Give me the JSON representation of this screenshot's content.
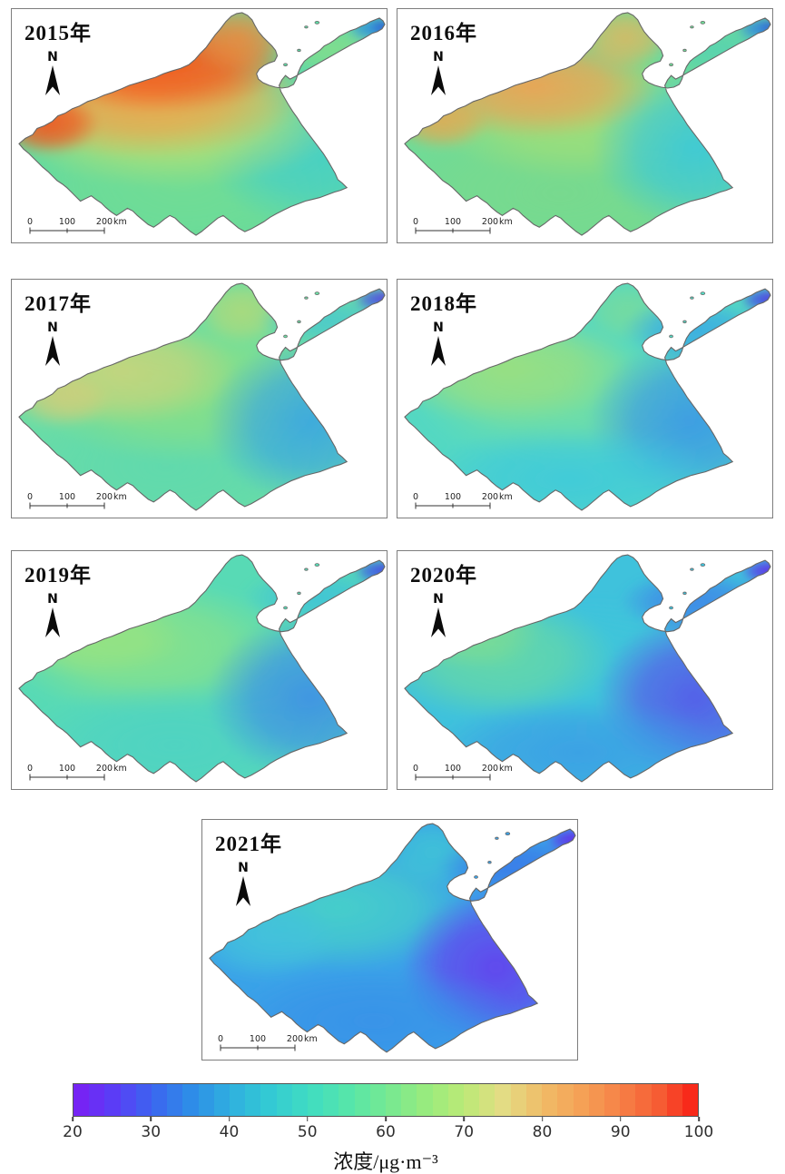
{
  "figure": {
    "panel_chrome": {
      "north_label": "N",
      "scale_ticks": [
        "0",
        "100",
        "200"
      ],
      "scale_unit": "km"
    },
    "panels": [
      {
        "year_label": "2015年",
        "base_color": "#5ed9a4",
        "field": [
          [
            190,
            195,
            220,
            110,
            "#74dd92",
            0.85
          ],
          [
            330,
            150,
            120,
            95,
            "#46cfc6",
            0.95
          ],
          [
            355,
            45,
            75,
            30,
            "#8ade88",
            0.75
          ],
          [
            175,
            120,
            195,
            80,
            "#bbe070",
            0.9
          ],
          [
            145,
            95,
            180,
            72,
            "#f0a04a",
            0.92
          ],
          [
            165,
            60,
            145,
            56,
            "#f2571c",
            0.95
          ],
          [
            40,
            128,
            58,
            36,
            "#f1531e",
            0.9
          ],
          [
            252,
            32,
            56,
            40,
            "#f08a3c",
            0.85
          ],
          [
            400,
            22,
            30,
            16,
            "#2f8fe0",
            0.95
          ],
          [
            411,
            20,
            14,
            10,
            "#2b55d6",
            0.95
          ]
        ]
      },
      {
        "year_label": "2016年",
        "base_color": "#6fdb97",
        "field": [
          [
            180,
            205,
            200,
            90,
            "#7ad98c",
            0.8
          ],
          [
            200,
            120,
            165,
            72,
            "#a5df75",
            0.85
          ],
          [
            330,
            155,
            115,
            90,
            "#3ec9d6",
            0.95
          ],
          [
            352,
            45,
            78,
            30,
            "#55d2b2",
            0.85
          ],
          [
            150,
            85,
            140,
            60,
            "#efa153",
            0.92
          ],
          [
            48,
            125,
            55,
            32,
            "#eda64e",
            0.85
          ],
          [
            252,
            32,
            52,
            36,
            "#e8b45c",
            0.8
          ],
          [
            402,
            22,
            28,
            15,
            "#2f83e2",
            0.95
          ],
          [
            412,
            20,
            12,
            9,
            "#2b55d8",
            0.95
          ]
        ]
      },
      {
        "year_label": "2017年",
        "base_color": "#6cdda4",
        "field": [
          [
            170,
            205,
            200,
            90,
            "#5fd9ae",
            0.85
          ],
          [
            190,
            120,
            180,
            80,
            "#8ce081",
            0.85
          ],
          [
            120,
            100,
            132,
            60,
            "#cdd37c",
            0.85
          ],
          [
            55,
            130,
            56,
            32,
            "#d2cd7a",
            0.8
          ],
          [
            255,
            35,
            52,
            36,
            "#b8d974",
            0.8
          ],
          [
            330,
            155,
            115,
            90,
            "#3aa6e2",
            0.92
          ],
          [
            350,
            45,
            78,
            28,
            "#48c8cf",
            0.85
          ],
          [
            404,
            22,
            26,
            14,
            "#4a52e4",
            0.95
          ],
          [
            413,
            20,
            11,
            8,
            "#5b35e0",
            0.95
          ]
        ]
      },
      {
        "year_label": "2018年",
        "base_color": "#54d8c2",
        "field": [
          [
            190,
            130,
            170,
            75,
            "#76dfa0",
            0.8
          ],
          [
            120,
            95,
            142,
            65,
            "#9fe07c",
            0.88
          ],
          [
            255,
            35,
            52,
            36,
            "#7fdc96",
            0.75
          ],
          [
            330,
            55,
            82,
            35,
            "#3aabe4",
            0.9
          ],
          [
            325,
            155,
            115,
            90,
            "#3b99e6",
            0.92
          ],
          [
            190,
            218,
            170,
            60,
            "#3fc9dc",
            0.85
          ],
          [
            405,
            22,
            26,
            14,
            "#4448e6",
            0.95
          ],
          [
            413,
            20,
            11,
            8,
            "#5c2fe2",
            0.95
          ]
        ]
      },
      {
        "year_label": "2019年",
        "base_color": "#58dab5",
        "field": [
          [
            150,
            105,
            162,
            75,
            "#8ce287",
            0.88
          ],
          [
            90,
            90,
            100,
            50,
            "#9be37f",
            0.8
          ],
          [
            180,
            212,
            180,
            70,
            "#4ed2c4",
            0.85
          ],
          [
            330,
            160,
            115,
            90,
            "#3e90e6",
            0.92
          ],
          [
            340,
            50,
            85,
            32,
            "#3fc3d8",
            0.88
          ],
          [
            404,
            22,
            26,
            14,
            "#3f55e8",
            0.95
          ],
          [
            413,
            20,
            11,
            8,
            "#4a3ae4",
            0.95
          ]
        ]
      },
      {
        "year_label": "2020年",
        "base_color": "#3fc2dc",
        "field": [
          [
            210,
            130,
            152,
            80,
            "#3fc6d9",
            0.8
          ],
          [
            110,
            115,
            132,
            70,
            "#68d9a4",
            0.9
          ],
          [
            80,
            85,
            82,
            45,
            "#84dd8c",
            0.75
          ],
          [
            330,
            55,
            85,
            35,
            "#3f86e8",
            0.9
          ],
          [
            330,
            160,
            110,
            90,
            "#5658ea",
            0.92
          ],
          [
            200,
            220,
            170,
            60,
            "#3b9ce6",
            0.85
          ],
          [
            406,
            22,
            26,
            14,
            "#5b36e8",
            0.95
          ],
          [
            413,
            20,
            10,
            8,
            "#6628ea",
            0.95
          ]
        ]
      },
      {
        "year_label": "2021年",
        "base_color": "#3aa2e8",
        "field": [
          [
            150,
            95,
            152,
            70,
            "#47d2c8",
            0.92
          ],
          [
            70,
            130,
            82,
            45,
            "#43c3dc",
            0.85
          ],
          [
            255,
            35,
            56,
            38,
            "#40c8d4",
            0.8
          ],
          [
            345,
            50,
            85,
            32,
            "#3a78e8",
            0.85
          ],
          [
            325,
            160,
            105,
            85,
            "#6440ee",
            0.92
          ],
          [
            190,
            218,
            170,
            60,
            "#3890e8",
            0.8
          ],
          [
            407,
            22,
            26,
            14,
            "#5f30e8",
            0.95
          ],
          [
            413,
            20,
            10,
            8,
            "#6a2aec",
            0.95
          ]
        ]
      }
    ],
    "colorbar": {
      "min": 20,
      "max": 100,
      "ticks": [
        20,
        30,
        40,
        50,
        60,
        70,
        80,
        90,
        100
      ],
      "label": "浓度/μg·m⁻³",
      "segments": 40,
      "stops": [
        {
          "v": 20,
          "c": "#7c1ef4"
        },
        {
          "v": 25,
          "c": "#5b3cf6"
        },
        {
          "v": 30,
          "c": "#3c64f0"
        },
        {
          "v": 35,
          "c": "#2e8ce8"
        },
        {
          "v": 40,
          "c": "#2fafdf"
        },
        {
          "v": 45,
          "c": "#33c9d4"
        },
        {
          "v": 50,
          "c": "#3fdcc3"
        },
        {
          "v": 55,
          "c": "#55e5ab"
        },
        {
          "v": 60,
          "c": "#74e993"
        },
        {
          "v": 65,
          "c": "#97eb7f"
        },
        {
          "v": 70,
          "c": "#bbea76"
        },
        {
          "v": 75,
          "c": "#e3dc84"
        },
        {
          "v": 80,
          "c": "#f0bd68"
        },
        {
          "v": 85,
          "c": "#f5a156"
        },
        {
          "v": 90,
          "c": "#f68247"
        },
        {
          "v": 95,
          "c": "#f65c33"
        },
        {
          "v": 100,
          "c": "#f81e14"
        }
      ]
    }
  },
  "chart_data": {
    "type": "heatmap",
    "subtype": "interpolated concentration maps of one province, 7 annual panels",
    "years": [
      "2015年",
      "2016年",
      "2017年",
      "2018年",
      "2019年",
      "2020年",
      "2021年"
    ],
    "colorbar": {
      "min": 20,
      "max": 100,
      "ticks": [
        20,
        30,
        40,
        50,
        60,
        70,
        80,
        90,
        100
      ],
      "label": "浓度/μg·m⁻³"
    },
    "estimated_values_ug_m3": [
      {
        "year": "2015年",
        "northwest": 92,
        "west": 90,
        "center": 75,
        "south": 60,
        "peninsula": 62,
        "southeast_coast": 52,
        "east_tip": 36
      },
      {
        "year": "2016年",
        "northwest": 80,
        "west": 78,
        "center": 66,
        "south": 60,
        "peninsula": 55,
        "southeast_coast": 46,
        "east_tip": 32
      },
      {
        "year": "2017年",
        "northwest": 70,
        "west": 69,
        "center": 63,
        "south": 55,
        "peninsula": 48,
        "southeast_coast": 42,
        "east_tip": 26
      },
      {
        "year": "2018年",
        "northwest": 66,
        "west": 60,
        "center": 58,
        "south": 50,
        "peninsula": 44,
        "southeast_coast": 40,
        "east_tip": 24
      },
      {
        "year": "2019年",
        "northwest": 64,
        "west": 62,
        "center": 58,
        "south": 52,
        "peninsula": 45,
        "southeast_coast": 38,
        "east_tip": 27
      },
      {
        "year": "2020年",
        "northwest": 56,
        "west": 55,
        "center": 48,
        "south": 42,
        "peninsula": 38,
        "southeast_coast": 29,
        "east_tip": 26
      },
      {
        "year": "2021年",
        "northwest": 50,
        "west": 46,
        "center": 44,
        "south": 38,
        "peninsula": 34,
        "southeast_coast": 26,
        "east_tip": 25
      }
    ],
    "layout_hints": {
      "grid": "2 columns x 3 rows + centered 7th panel",
      "legend_position": "horizontal colorbar at bottom"
    }
  }
}
